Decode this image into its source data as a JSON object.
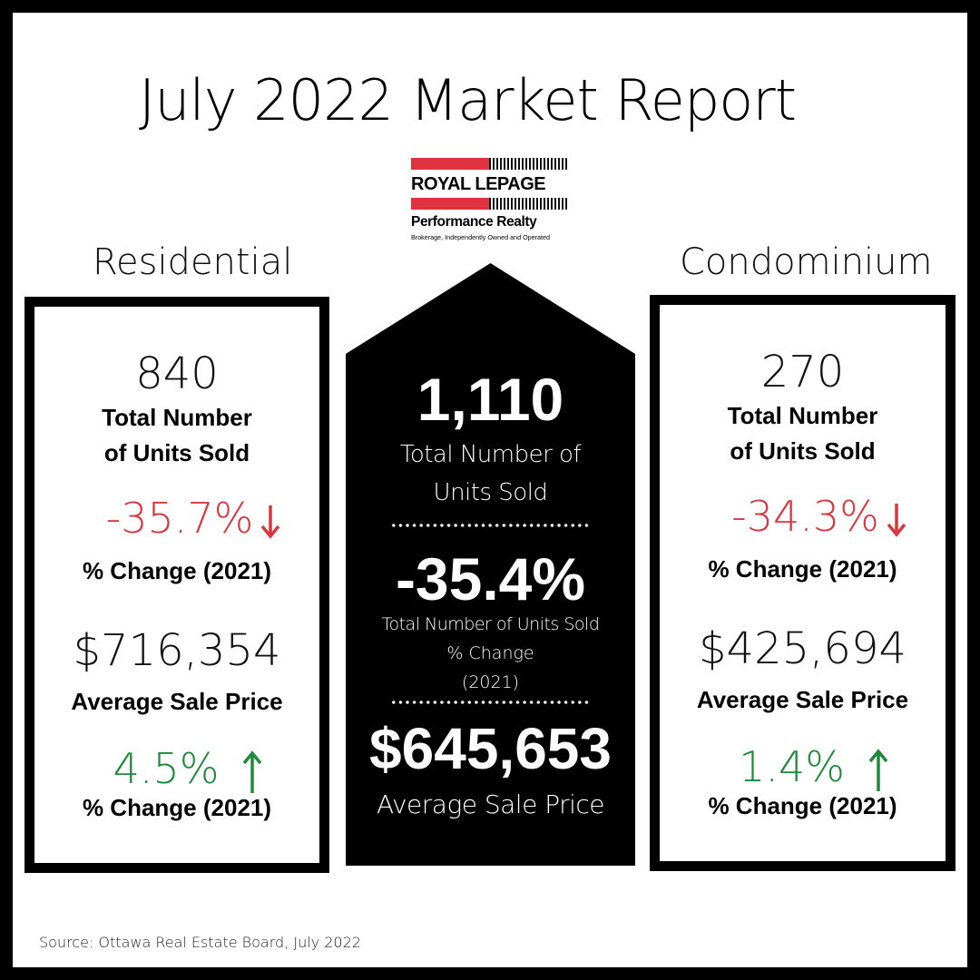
{
  "title": "July 2022 Market Report",
  "logo": {
    "name": "ROYAL LEPAGE",
    "subtitle": "Performance Realty",
    "tagline": "Brokerage, Independently Owned and Operated"
  },
  "residential": {
    "label": "Residential",
    "units": "840",
    "units_label_1": "Total Number",
    "units_label_2": "of Units Sold",
    "units_change": "-35.7%",
    "change_label": "% Change (2021)",
    "avg_price": "$716,354",
    "avg_price_label": "Average Sale Price",
    "price_change": "4.5%",
    "price_change_label": "% Change (2021)"
  },
  "condo": {
    "label": "Condominium",
    "units": "270",
    "units_label_1": "Total Number",
    "units_label_2": "of Units Sold",
    "units_change": "-34.3%",
    "change_label": "% Change (2021)",
    "avg_price": "$425,694",
    "avg_price_label": "Average Sale Price",
    "price_change": "1.4%",
    "price_change_label": "% Change (2021)"
  },
  "total": {
    "units": "1,110",
    "units_label_1": "Total Number of",
    "units_label_2": "Units Sold",
    "change": "-35.4%",
    "change_label_1": "Total Number of Units Sold",
    "change_label_2": "% Change",
    "change_label_3": "(2021)",
    "avg_price": "$645,653",
    "avg_price_label": "Average Sale Price"
  },
  "colors": {
    "down": "#d9363e",
    "up": "#1f8a3b",
    "brand_red": "#e03340"
  },
  "icons": {
    "down": "arrow-down-icon",
    "up": "arrow-up-icon"
  },
  "source": "Source: Ottawa Real Estate Board, July 2022"
}
